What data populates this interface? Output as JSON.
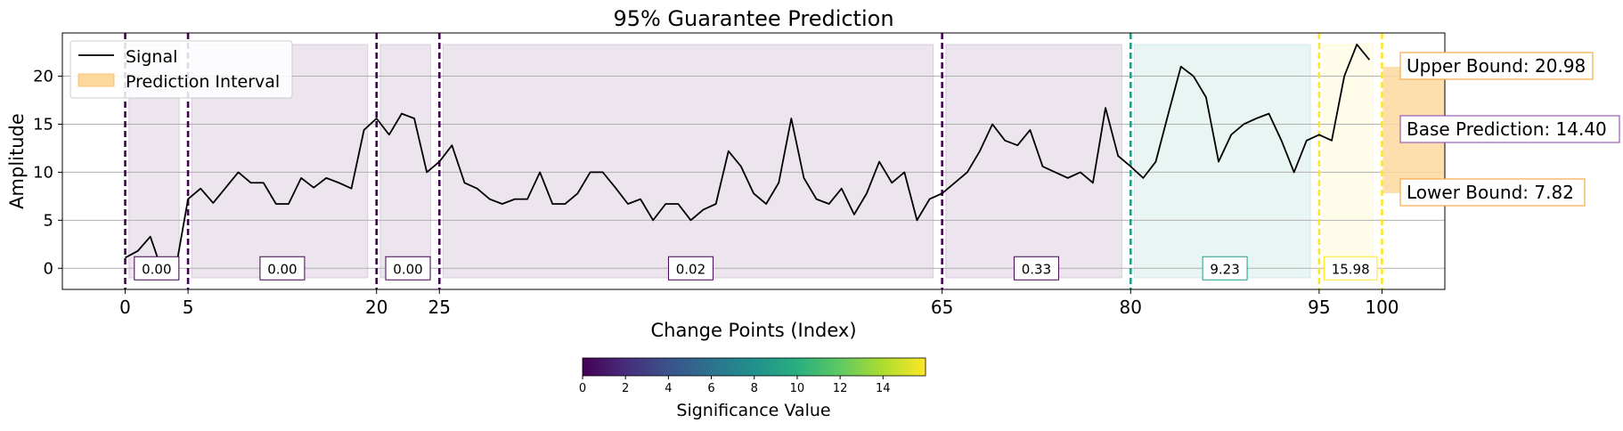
{
  "chart_data": {
    "type": "line",
    "title": "95% Guarantee Prediction",
    "xlabel": "Change Points (Index)",
    "ylabel": "Amplitude",
    "xlim": [
      -5,
      105
    ],
    "ylim": [
      -2.2,
      24.5
    ],
    "grid": "horizontal",
    "legend_position": "top-left",
    "legend": {
      "signal_label": "Signal",
      "interval_label": "Prediction Interval"
    },
    "x_ticks": [
      0,
      5,
      20,
      25,
      65,
      80,
      95,
      100
    ],
    "y_ticks": [
      0,
      5,
      10,
      15,
      20
    ],
    "signal": {
      "name": "Signal",
      "color": "#000000",
      "x": [
        0,
        1,
        2,
        3,
        4,
        5,
        6,
        7,
        8,
        9,
        10,
        11,
        12,
        13,
        14,
        15,
        16,
        17,
        18,
        19,
        20,
        21,
        22,
        23,
        24,
        25,
        26,
        27,
        28,
        29,
        30,
        31,
        32,
        33,
        34,
        35,
        36,
        37,
        38,
        39,
        40,
        41,
        42,
        43,
        44,
        45,
        46,
        47,
        48,
        49,
        50,
        51,
        52,
        53,
        54,
        55,
        56,
        57,
        58,
        59,
        60,
        61,
        62,
        63,
        64,
        65,
        66,
        67,
        68,
        69,
        70,
        71,
        72,
        73,
        74,
        75,
        76,
        77,
        78,
        79,
        80,
        81,
        82,
        83,
        84,
        85,
        86,
        87,
        88,
        89,
        90,
        91,
        92,
        93,
        94,
        95,
        96,
        97,
        98,
        99
      ],
      "y": [
        1.1,
        1.8,
        3.3,
        -0.5,
        -0.2,
        7.2,
        8.3,
        6.8,
        8.4,
        10.0,
        8.9,
        8.9,
        6.7,
        6.7,
        9.4,
        8.4,
        9.4,
        8.9,
        8.3,
        14.4,
        15.6,
        13.9,
        16.1,
        15.6,
        10.0,
        11.1,
        12.8,
        8.9,
        8.3,
        7.2,
        6.7,
        7.2,
        7.2,
        10.0,
        6.7,
        6.7,
        7.8,
        10.0,
        10.0,
        8.4,
        6.7,
        7.2,
        5.0,
        6.7,
        6.7,
        5.0,
        6.1,
        6.7,
        12.2,
        10.6,
        7.8,
        6.7,
        8.9,
        15.6,
        9.4,
        7.2,
        6.7,
        8.3,
        5.6,
        7.8,
        11.1,
        8.9,
        10.0,
        5.0,
        7.2,
        7.8,
        8.9,
        10.0,
        12.2,
        15.0,
        13.3,
        12.8,
        14.4,
        10.6,
        10.0,
        9.4,
        10.0,
        8.9,
        16.7,
        11.7,
        10.6,
        9.4,
        11.1,
        16.1,
        21.0,
        20.0,
        17.8,
        11.1,
        13.9,
        15.0,
        15.6,
        16.1,
        13.3,
        10.0,
        13.3,
        13.9,
        13.3,
        20.0,
        23.3,
        21.7
      ]
    },
    "segments": [
      {
        "start": 0,
        "end": 5,
        "value": 0.0,
        "label": "0.00",
        "color": "#440154"
      },
      {
        "start": 5,
        "end": 20,
        "value": 0.0,
        "label": "0.00",
        "color": "#440154"
      },
      {
        "start": 20,
        "end": 25,
        "value": 0.0,
        "label": "0.00",
        "color": "#440154"
      },
      {
        "start": 25,
        "end": 65,
        "value": 0.02,
        "label": "0.02",
        "color": "#440154"
      },
      {
        "start": 65,
        "end": 80,
        "value": 0.33,
        "label": "0.33",
        "color": "#440154"
      },
      {
        "start": 80,
        "end": 95,
        "value": 9.23,
        "label": "9.23",
        "color": "#1f9e89"
      },
      {
        "start": 95,
        "end": 100,
        "value": 15.98,
        "label": "15.98",
        "color": "#fde725"
      }
    ],
    "prediction": {
      "upper": 20.98,
      "base": 14.4,
      "lower": 7.82,
      "upper_label": "Upper Bound: 20.98",
      "base_label": "Base Prediction: 14.40",
      "lower_label": "Lower Bound: 7.82",
      "interval_color": "#fdd9a0",
      "bound_border_color": "#f6a945",
      "base_border_color": "#9b59b6"
    },
    "colorbar": {
      "label": "Significance Value",
      "min": 0,
      "max": 15.98,
      "ticks": [
        0,
        2,
        4,
        6,
        8,
        10,
        12,
        14
      ],
      "colormap": "viridis"
    }
  }
}
